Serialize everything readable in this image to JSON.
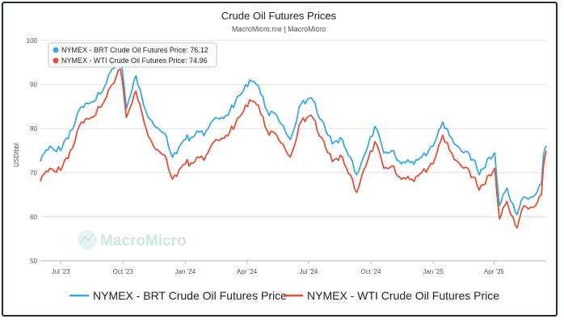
{
  "chart_data": {
    "type": "line",
    "title": "Crude Oil Futures Prices",
    "subtitle": "MacroMicro.me | MacroMicro",
    "watermark": "MacroMicro",
    "ylabel": "USD/bbl",
    "ylim": [
      50,
      100
    ],
    "yticks": [
      50,
      60,
      70,
      80,
      90,
      100
    ],
    "x_start": "2023-06-01",
    "x_end": "2025-06-17",
    "xticks": [
      {
        "label": "Jul '23",
        "date": "2023-07-01"
      },
      {
        "label": "Oct '23",
        "date": "2023-10-01"
      },
      {
        "label": "Jan '24",
        "date": "2024-01-01"
      },
      {
        "label": "Apr '24",
        "date": "2024-04-01"
      },
      {
        "label": "Jul '24",
        "date": "2024-07-01"
      },
      {
        "label": "Oct '24",
        "date": "2024-10-01"
      },
      {
        "label": "Jan '25",
        "date": "2025-01-01"
      },
      {
        "label": "Apr '25",
        "date": "2025-04-01"
      }
    ],
    "grid": true,
    "legend_position": "bottom",
    "tooltip": [
      {
        "series": "NYMEX - BRT Crude Oil Futures Price",
        "value": "76.12",
        "color": "#3aa9dd"
      },
      {
        "series": "NYMEX - WTI Crude Oil Futures Price",
        "value": "74.96",
        "color": "#e0513a"
      }
    ],
    "series": [
      {
        "name": "NYMEX - BRT Crude Oil Futures Price",
        "color": "#3aa9dd",
        "points": [
          [
            "2023-06-01",
            72.5
          ],
          [
            "2023-06-15",
            76.0
          ],
          [
            "2023-07-01",
            75.0
          ],
          [
            "2023-07-15",
            79.5
          ],
          [
            "2023-08-01",
            85.0
          ],
          [
            "2023-08-15",
            86.0
          ],
          [
            "2023-09-01",
            88.5
          ],
          [
            "2023-09-15",
            93.5
          ],
          [
            "2023-09-27",
            96.5
          ],
          [
            "2023-10-06",
            84.5
          ],
          [
            "2023-10-20",
            92.0
          ],
          [
            "2023-11-01",
            85.0
          ],
          [
            "2023-11-15",
            81.0
          ],
          [
            "2023-12-01",
            79.0
          ],
          [
            "2023-12-13",
            73.5
          ],
          [
            "2024-01-01",
            77.5
          ],
          [
            "2024-01-15",
            78.5
          ],
          [
            "2024-02-01",
            79.5
          ],
          [
            "2024-02-15",
            82.5
          ],
          [
            "2024-03-01",
            83.0
          ],
          [
            "2024-03-15",
            86.0
          ],
          [
            "2024-04-05",
            91.0
          ],
          [
            "2024-04-15",
            90.0
          ],
          [
            "2024-05-01",
            84.0
          ],
          [
            "2024-05-15",
            83.0
          ],
          [
            "2024-06-04",
            77.5
          ],
          [
            "2024-06-20",
            85.5
          ],
          [
            "2024-07-05",
            87.0
          ],
          [
            "2024-07-20",
            82.0
          ],
          [
            "2024-08-05",
            76.5
          ],
          [
            "2024-08-20",
            77.5
          ],
          [
            "2024-09-01",
            73.5
          ],
          [
            "2024-09-10",
            69.5
          ],
          [
            "2024-09-20",
            73.5
          ],
          [
            "2024-10-07",
            80.5
          ],
          [
            "2024-10-20",
            74.5
          ],
          [
            "2024-11-01",
            75.0
          ],
          [
            "2024-11-15",
            72.0
          ],
          [
            "2024-12-01",
            72.5
          ],
          [
            "2024-12-15",
            73.5
          ],
          [
            "2025-01-01",
            76.0
          ],
          [
            "2025-01-15",
            81.5
          ],
          [
            "2025-02-01",
            76.5
          ],
          [
            "2025-02-15",
            74.5
          ],
          [
            "2025-03-01",
            73.0
          ],
          [
            "2025-03-10",
            69.5
          ],
          [
            "2025-03-25",
            73.5
          ],
          [
            "2025-04-02",
            74.5
          ],
          [
            "2025-04-09",
            62.5
          ],
          [
            "2025-04-20",
            66.5
          ],
          [
            "2025-05-05",
            60.5
          ],
          [
            "2025-05-15",
            64.5
          ],
          [
            "2025-06-01",
            65.0
          ],
          [
            "2025-06-10",
            67.5
          ],
          [
            "2025-06-13",
            74.0
          ],
          [
            "2025-06-17",
            76.12
          ]
        ]
      },
      {
        "name": "NYMEX - WTI Crude Oil Futures Price",
        "color": "#e0513a",
        "points": [
          [
            "2023-06-01",
            68.0
          ],
          [
            "2023-06-15",
            71.0
          ],
          [
            "2023-07-01",
            70.5
          ],
          [
            "2023-07-15",
            75.0
          ],
          [
            "2023-08-01",
            81.5
          ],
          [
            "2023-08-15",
            82.5
          ],
          [
            "2023-09-01",
            85.5
          ],
          [
            "2023-09-15",
            90.0
          ],
          [
            "2023-09-27",
            93.5
          ],
          [
            "2023-10-06",
            82.5
          ],
          [
            "2023-10-20",
            88.5
          ],
          [
            "2023-11-01",
            81.5
          ],
          [
            "2023-11-15",
            76.0
          ],
          [
            "2023-12-01",
            74.0
          ],
          [
            "2023-12-13",
            68.5
          ],
          [
            "2024-01-01",
            72.0
          ],
          [
            "2024-01-15",
            72.5
          ],
          [
            "2024-02-01",
            74.0
          ],
          [
            "2024-02-15",
            77.5
          ],
          [
            "2024-03-01",
            78.5
          ],
          [
            "2024-03-15",
            81.0
          ],
          [
            "2024-04-05",
            86.5
          ],
          [
            "2024-04-15",
            85.5
          ],
          [
            "2024-05-01",
            79.5
          ],
          [
            "2024-05-15",
            78.5
          ],
          [
            "2024-06-04",
            73.5
          ],
          [
            "2024-06-20",
            81.5
          ],
          [
            "2024-07-05",
            83.0
          ],
          [
            "2024-07-20",
            78.0
          ],
          [
            "2024-08-05",
            72.5
          ],
          [
            "2024-08-20",
            73.5
          ],
          [
            "2024-09-01",
            69.5
          ],
          [
            "2024-09-10",
            65.5
          ],
          [
            "2024-09-20",
            70.5
          ],
          [
            "2024-10-07",
            77.0
          ],
          [
            "2024-10-20",
            71.0
          ],
          [
            "2024-11-01",
            71.5
          ],
          [
            "2024-11-15",
            68.5
          ],
          [
            "2024-12-01",
            68.5
          ],
          [
            "2024-12-15",
            70.0
          ],
          [
            "2025-01-01",
            72.0
          ],
          [
            "2025-01-15",
            78.5
          ],
          [
            "2025-02-01",
            73.0
          ],
          [
            "2025-02-15",
            71.0
          ],
          [
            "2025-03-01",
            69.0
          ],
          [
            "2025-03-10",
            66.0
          ],
          [
            "2025-03-25",
            69.5
          ],
          [
            "2025-04-02",
            71.0
          ],
          [
            "2025-04-09",
            59.5
          ],
          [
            "2025-04-20",
            63.5
          ],
          [
            "2025-05-05",
            57.5
          ],
          [
            "2025-05-15",
            62.5
          ],
          [
            "2025-06-01",
            62.5
          ],
          [
            "2025-06-10",
            65.0
          ],
          [
            "2025-06-13",
            71.5
          ],
          [
            "2025-06-17",
            74.96
          ]
        ]
      }
    ]
  }
}
